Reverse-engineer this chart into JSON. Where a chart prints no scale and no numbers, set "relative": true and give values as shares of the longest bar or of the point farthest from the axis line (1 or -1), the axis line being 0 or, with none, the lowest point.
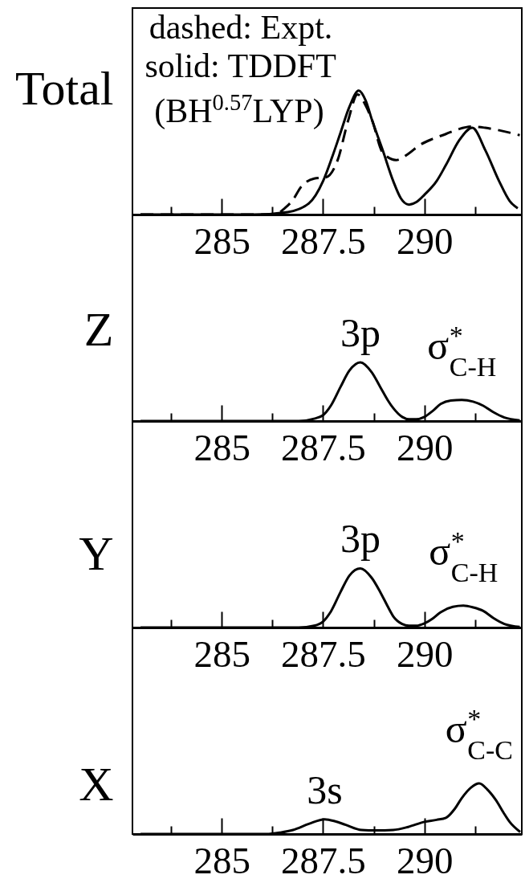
{
  "chart_data": [
    {
      "type": "line",
      "ylabel": "Total",
      "relative": true,
      "tick_labels": "x",
      "xlim": [
        282.8,
        292.4
      ],
      "xticks": [
        {
          "value": 283.75,
          "label": null
        },
        285,
        {
          "value": 286.25,
          "label": null
        },
        287.5,
        {
          "value": 288.75,
          "label": null
        },
        290,
        {
          "value": 291.25,
          "label": null
        }
      ],
      "annotations": [
        "dashed: Expt.",
        "solid: TDDFT",
        "(BH$^{0.57}$LYP)"
      ],
      "series": [
        {
          "color": "#000000",
          "line_style": "dashed",
          "x": [
            283.0,
            286.3,
            286.55,
            286.76,
            286.95,
            287.28,
            287.57,
            287.86,
            288.12,
            288.35,
            288.55,
            288.71,
            288.97,
            289.3,
            289.6,
            289.88,
            290.2,
            290.53,
            290.85,
            291.18,
            291.5,
            291.84,
            292.35
          ],
          "values": [
            0,
            0,
            0.05,
            0.12,
            0.22,
            0.29,
            0.3,
            0.44,
            0.76,
            0.97,
            0.88,
            0.76,
            0.5,
            0.44,
            0.49,
            0.56,
            0.61,
            0.65,
            0.69,
            0.71,
            0.7,
            0.68,
            0.64
          ]
        },
        {
          "color": "#000000",
          "line_style": "solid",
          "x": [
            283.0,
            285.8,
            286.63,
            287.15,
            287.5,
            287.72,
            287.92,
            288.15,
            288.38,
            288.55,
            288.71,
            288.97,
            289.23,
            289.42,
            289.62,
            289.8,
            290.0,
            290.3,
            290.53,
            290.86,
            291.18,
            291.5,
            291.84,
            292.1,
            292.3
          ],
          "values": [
            0,
            0,
            0.02,
            0.09,
            0.27,
            0.46,
            0.65,
            0.87,
            1.0,
            0.92,
            0.76,
            0.52,
            0.27,
            0.13,
            0.08,
            0.1,
            0.16,
            0.27,
            0.4,
            0.6,
            0.7,
            0.52,
            0.27,
            0.11,
            0.05
          ]
        }
      ]
    },
    {
      "type": "line",
      "ylabel": "Z",
      "relative": true,
      "tick_labels": "x",
      "xlim": [
        282.8,
        292.4
      ],
      "xticks": [
        {
          "value": 283.75,
          "label": null
        },
        285,
        {
          "value": 286.25,
          "label": null
        },
        287.5,
        {
          "value": 288.75,
          "label": null
        },
        290,
        {
          "value": 291.25,
          "label": null
        }
      ],
      "annotations": [
        {
          "text": "3p",
          "x": 288.42,
          "y": 1.0
        },
        {
          "text": "σ$^{*}$$_{C-H}$",
          "x": 290.92,
          "y": 0.36
        }
      ],
      "series": [
        {
          "color": "#000000",
          "line_style": "solid",
          "x": [
            283.0,
            286.9,
            287.28,
            287.5,
            287.7,
            287.93,
            288.15,
            288.42,
            288.7,
            288.91,
            289.1,
            289.23,
            289.45,
            289.62,
            289.8,
            290.0,
            290.2,
            290.4,
            290.65,
            290.92,
            291.2,
            291.45,
            291.7,
            291.97,
            292.35
          ],
          "values": [
            0,
            0,
            0.04,
            0.1,
            0.27,
            0.58,
            0.86,
            1.0,
            0.83,
            0.58,
            0.35,
            0.22,
            0.07,
            0.03,
            0.03,
            0.07,
            0.17,
            0.29,
            0.35,
            0.36,
            0.33,
            0.26,
            0.15,
            0.06,
            0.01
          ]
        }
      ]
    },
    {
      "type": "line",
      "ylabel": "Y",
      "relative": true,
      "tick_labels": "x",
      "xlim": [
        282.8,
        292.4
      ],
      "xticks": [
        {
          "value": 283.75,
          "label": null
        },
        285,
        {
          "value": 286.25,
          "label": null
        },
        287.5,
        {
          "value": 288.75,
          "label": null
        },
        290,
        {
          "value": 291.25,
          "label": null
        }
      ],
      "annotations": [
        {
          "text": "3p",
          "x": 288.42,
          "y": 1.0
        },
        {
          "text": "σ$^{*}$$_{C-H}$",
          "x": 290.96,
          "y": 0.37
        }
      ],
      "series": [
        {
          "color": "#000000",
          "line_style": "solid",
          "x": [
            283.0,
            286.9,
            287.28,
            287.5,
            287.7,
            287.93,
            288.15,
            288.42,
            288.7,
            288.91,
            289.1,
            289.23,
            289.45,
            289.62,
            289.8,
            290.0,
            290.2,
            290.4,
            290.7,
            290.96,
            291.2,
            291.45,
            291.7,
            291.97,
            292.35
          ],
          "values": [
            0,
            0,
            0.03,
            0.1,
            0.28,
            0.6,
            0.88,
            1.0,
            0.84,
            0.6,
            0.35,
            0.19,
            0.06,
            0.03,
            0.03,
            0.07,
            0.15,
            0.26,
            0.35,
            0.37,
            0.34,
            0.28,
            0.16,
            0.06,
            0.01
          ]
        }
      ]
    },
    {
      "type": "line",
      "ylabel": "X",
      "relative": true,
      "tick_labels": "x",
      "xlim": [
        282.8,
        292.4
      ],
      "xticks": [
        {
          "value": 283.75,
          "label": null
        },
        285,
        {
          "value": 286.25,
          "label": null
        },
        287.5,
        {
          "value": 288.75,
          "label": null
        },
        290,
        {
          "value": 291.25,
          "label": null
        }
      ],
      "annotations": [
        {
          "text": "3s",
          "x": 287.54,
          "y": 0.29
        },
        {
          "text": "σ$^{*}$$_{C-C}$",
          "x": 291.35,
          "y": 1.0
        }
      ],
      "series": [
        {
          "color": "#000000",
          "line_style": "solid",
          "x": [
            283.0,
            286.1,
            286.45,
            286.76,
            287.15,
            287.54,
            287.8,
            288.06,
            288.45,
            288.8,
            289.23,
            289.6,
            290.0,
            290.3,
            290.53,
            290.75,
            290.92,
            291.15,
            291.35,
            291.55,
            291.77,
            291.95,
            292.1,
            292.36
          ],
          "values": [
            0,
            0,
            0.03,
            0.08,
            0.2,
            0.29,
            0.25,
            0.18,
            0.08,
            0.07,
            0.08,
            0.14,
            0.24,
            0.28,
            0.32,
            0.5,
            0.71,
            0.92,
            1.0,
            0.88,
            0.66,
            0.42,
            0.24,
            0.04
          ]
        }
      ]
    }
  ]
}
